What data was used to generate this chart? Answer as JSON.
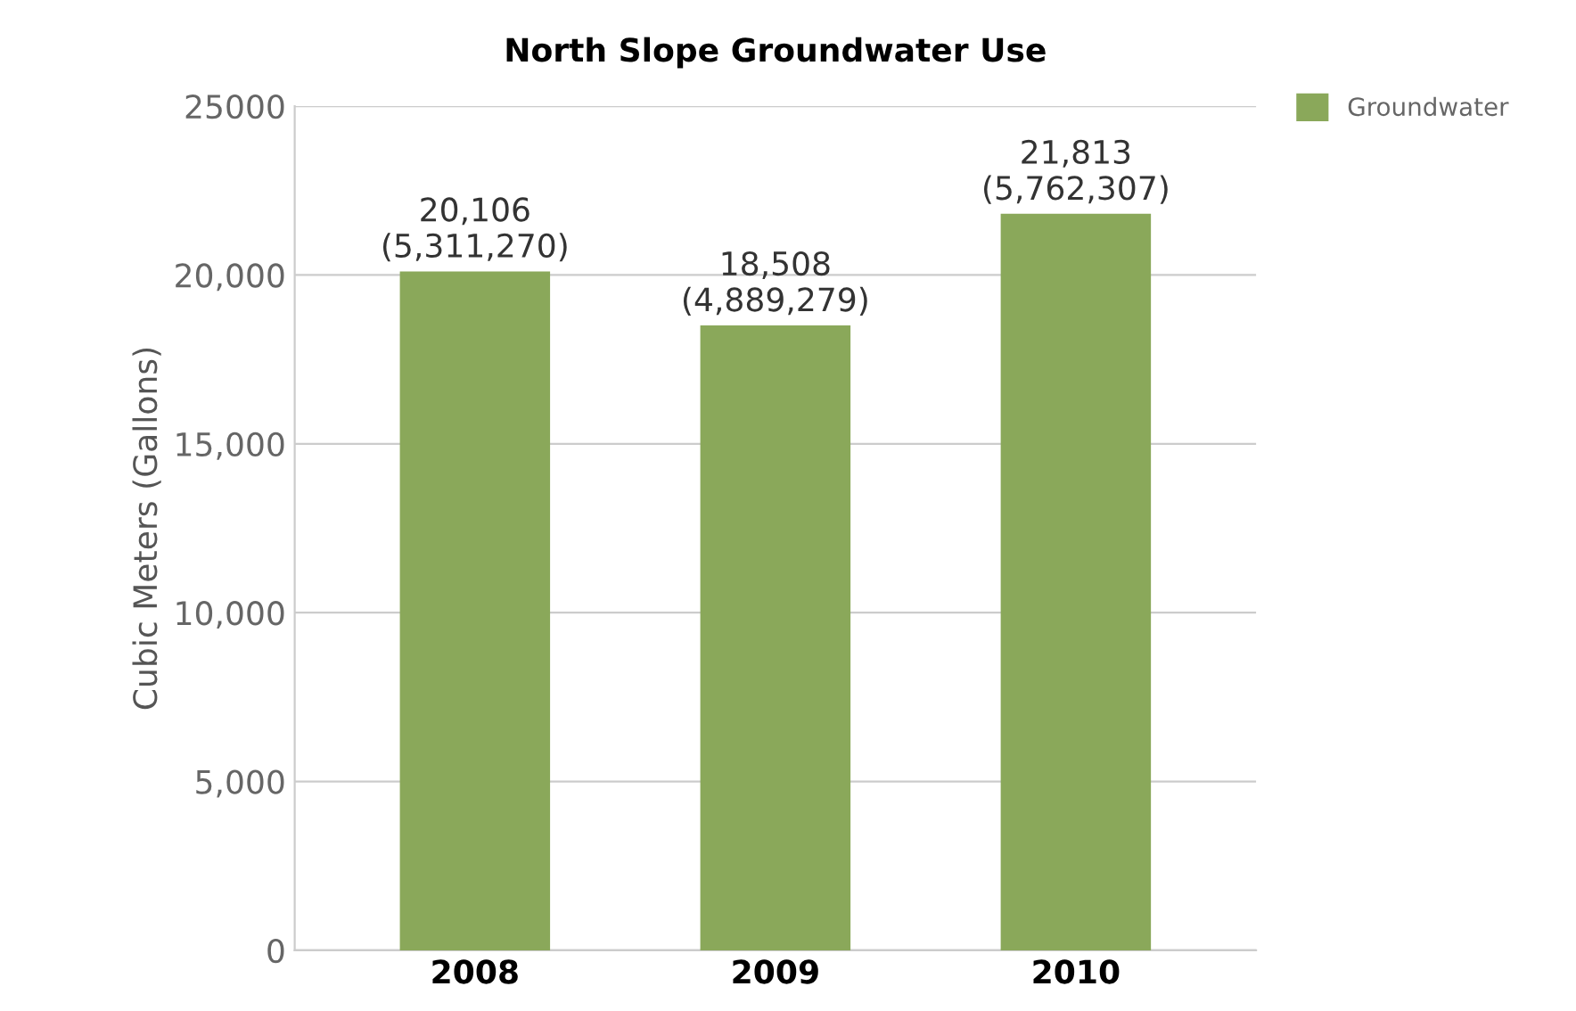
{
  "chart_data": {
    "type": "bar",
    "title": "North Slope Groundwater Use",
    "ylabel": "Cubic Meters (Gallons)",
    "categories": [
      "2008",
      "2009",
      "2010"
    ],
    "series": [
      {
        "name": "Groundwater",
        "color": "#8aa85a",
        "values": [
          20106,
          18508,
          21813
        ],
        "value_labels": [
          "20,106\n(5,311,270)",
          "18,508\n(4,889,279)",
          "21,813\n(5,762,307)"
        ]
      }
    ],
    "ylim": [
      0,
      25000
    ],
    "yticks": [
      0,
      {
        "value": 5000,
        "label": "5,000"
      },
      {
        "value": 10000,
        "label": "10,000"
      },
      {
        "value": 15000,
        "label": "15,000"
      },
      {
        "value": 20000,
        "label": "20,000"
      },
      25000
    ],
    "grid": "y",
    "legend": "top right"
  }
}
